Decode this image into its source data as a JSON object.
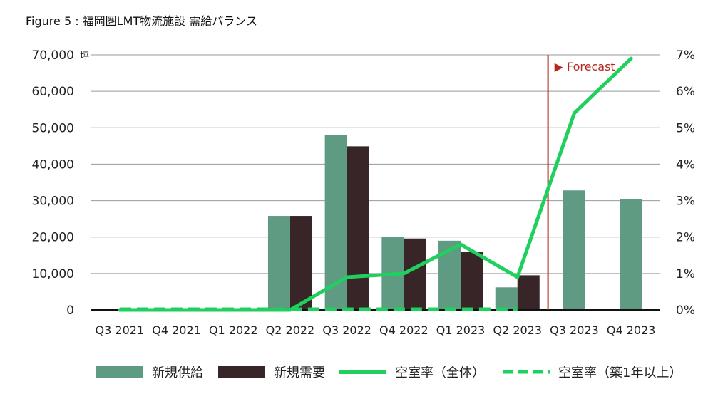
{
  "title": "Figure 5 : 福岡圏LMT物流施設 需給バランス",
  "chart_data": {
    "type": "bar",
    "categories": [
      "Q3 2021",
      "Q4 2021",
      "Q1 2022",
      "Q2 2022",
      "Q3 2022",
      "Q4 2022",
      "Q1 2023",
      "Q2 2023",
      "Q3 2023",
      "Q4 2023"
    ],
    "y_left": {
      "unit": "坪",
      "ylim": [
        0,
        70000
      ],
      "ticks": [
        "0",
        "10,000",
        "20,000",
        "30,000",
        "40,000",
        "50,000",
        "60,000",
        "70,000"
      ]
    },
    "y_right": {
      "ylim": [
        0,
        7
      ],
      "ticks": [
        "0%",
        "1%",
        "2%",
        "3%",
        "4%",
        "5%",
        "6%",
        "7%"
      ]
    },
    "series": [
      {
        "name": "新規供給",
        "kind": "bar",
        "color": "#5f9a82",
        "values": [
          0,
          0,
          0,
          25800,
          48000,
          20000,
          19000,
          6200,
          32800,
          30500
        ]
      },
      {
        "name": "新規需要",
        "kind": "bar",
        "color": "#372527",
        "values": [
          0,
          0,
          0,
          25800,
          44900,
          19600,
          16000,
          9500,
          null,
          null
        ]
      },
      {
        "name": "空室率（全体）",
        "kind": "line",
        "axis": "right",
        "color": "#1fd05e",
        "values": [
          0,
          0,
          0,
          0,
          0.9,
          1.0,
          1.8,
          0.9,
          5.4,
          6.9
        ]
      },
      {
        "name": "空室率（築1年以上）",
        "kind": "line-dashed",
        "axis": "right",
        "color": "#1fd05e",
        "values": [
          0,
          0,
          0,
          0,
          0,
          0,
          0,
          0,
          null,
          null
        ]
      }
    ],
    "annotation": {
      "text": "▶ Forecast",
      "color": "#b5271e",
      "after_category": "Q2 2023"
    },
    "grid": true,
    "legend_position": "bottom"
  }
}
